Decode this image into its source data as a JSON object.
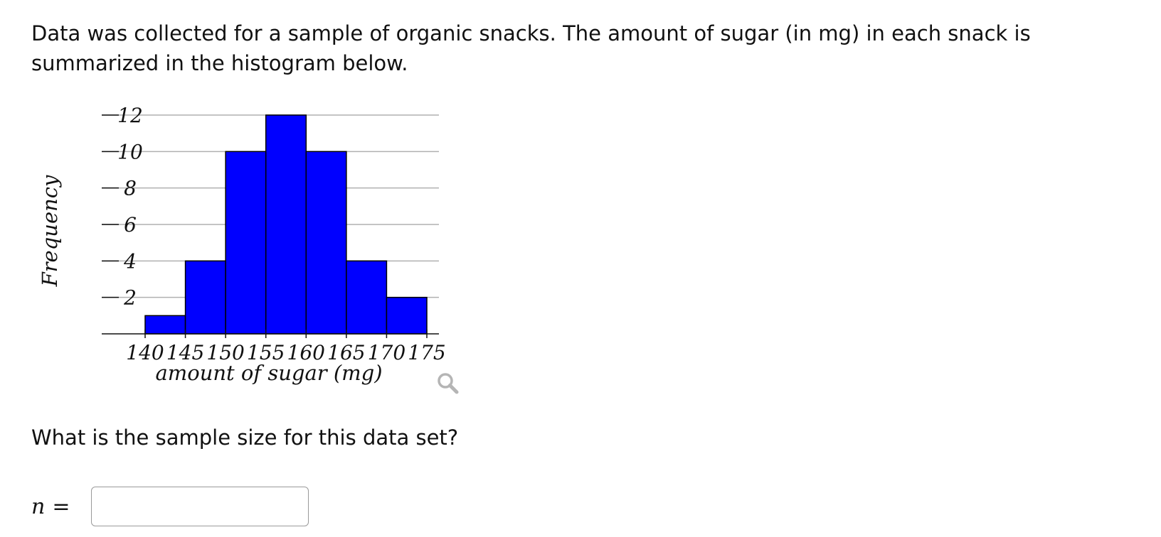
{
  "question": {
    "intro": "Data was collected for a sample of organic snacks. The amount of sugar (in mg) in each snack is summarized in the histogram below.",
    "prompt": "What is the sample size for this data set?"
  },
  "answer": {
    "label": "n",
    "equals": "=",
    "value": ""
  },
  "icons": {
    "zoom": "magnifier-icon"
  },
  "chart_data": {
    "type": "bar",
    "subtype": "histogram",
    "xlabel": "amount of sugar (mg)",
    "ylabel": "Frequency",
    "bin_edges": [
      140,
      145,
      150,
      155,
      160,
      165,
      170,
      175
    ],
    "values": [
      1,
      4,
      10,
      12,
      10,
      4,
      2
    ],
    "xlim": [
      140,
      175
    ],
    "ylim": [
      0,
      12
    ],
    "yticks": [
      2,
      4,
      6,
      8,
      10,
      12
    ],
    "xticks": [
      140,
      145,
      150,
      155,
      160,
      165,
      170,
      175
    ],
    "grid": true,
    "bar_color": "#0000ff",
    "bar_edge_color": "#000000",
    "grid_color": "#b0b0b0"
  }
}
